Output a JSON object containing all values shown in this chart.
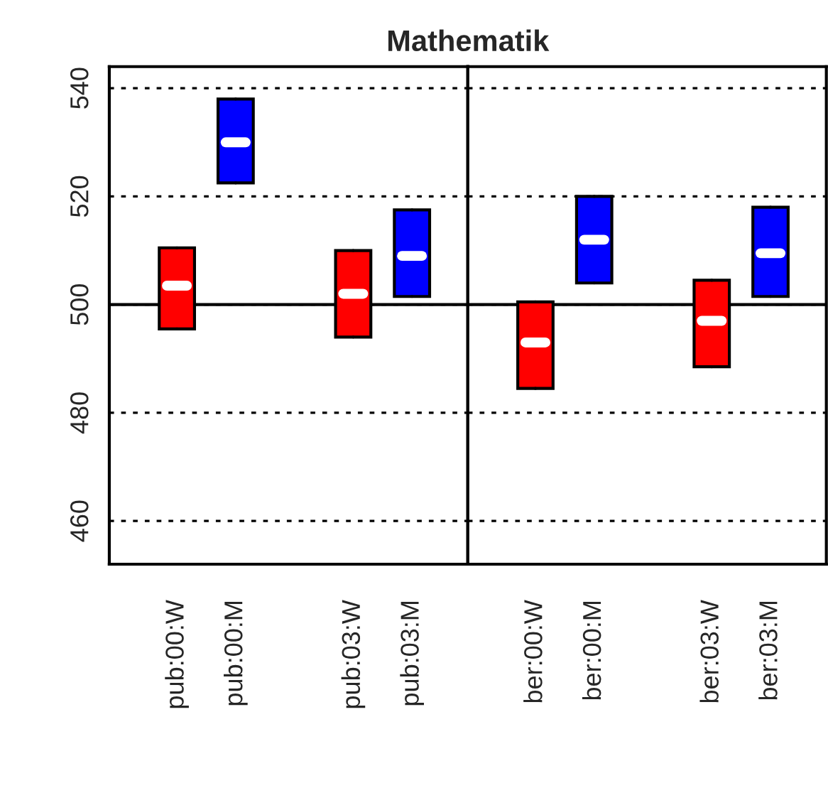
{
  "chart_data": [
    {
      "type": "box",
      "title": "Mathematik",
      "categories": [
        "pub:00:W",
        "pub:00:M",
        null,
        "pub:03:W",
        "pub:03:M"
      ],
      "boxes": [
        {
          "low": 495.5,
          "q1": 495.5,
          "median": 503.5,
          "q3": 510.5,
          "high": 510.5
        },
        {
          "low": 522.5,
          "q1": 522.5,
          "median": 530,
          "q3": 538,
          "high": 538
        },
        null,
        {
          "low": 494,
          "q1": 494,
          "median": 502,
          "q3": 510,
          "high": 510
        },
        {
          "low": 501.5,
          "q1": 501.5,
          "median": 509,
          "q3": 517.5,
          "high": 517.5
        }
      ],
      "colors": [
        "#ff0000",
        "#0000ff",
        null,
        "#ff0000",
        "#0000ff"
      ],
      "ylim": [
        452,
        544
      ],
      "yticks": [
        460,
        480,
        500,
        520,
        540
      ],
      "grid": "y",
      "ref_lines": [
        {
          "axis": "y",
          "value": 500,
          "line_style": "solid",
          "color": "#000000"
        }
      ]
    },
    {
      "type": "box",
      "categories": [
        "ber:00:W",
        "ber:00:M",
        null,
        "ber:03:W",
        "ber:03:M"
      ],
      "boxes": [
        {
          "low": 484.5,
          "q1": 484.5,
          "median": 493,
          "q3": 500.5,
          "high": 500.5
        },
        {
          "low": 504,
          "q1": 504,
          "median": 512,
          "q3": 520,
          "high": 520
        },
        null,
        {
          "low": 488.5,
          "q1": 488.5,
          "median": 497,
          "q3": 504.5,
          "high": 504.5
        },
        {
          "low": 501.5,
          "q1": 501.5,
          "median": 509.5,
          "q3": 518,
          "high": 518
        }
      ],
      "colors": [
        "#ff0000",
        "#0000ff",
        null,
        "#ff0000",
        "#0000ff"
      ],
      "ylim": [
        452,
        544
      ],
      "yticks": [
        460,
        480,
        500,
        520,
        540
      ],
      "grid": "y",
      "tick_labels": "x",
      "ref_lines": [
        {
          "axis": "y",
          "value": 500,
          "line_style": "solid",
          "color": "#000000"
        }
      ]
    }
  ]
}
